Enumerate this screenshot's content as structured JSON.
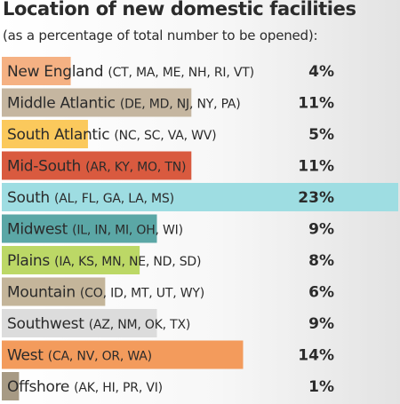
{
  "chart_data": {
    "type": "bar",
    "orientation": "horizontal",
    "title": "Location of new domestic facilities",
    "subtitle": "(as a percentage of total number to be opened):",
    "unit": "%",
    "categories": [
      {
        "region": "New England",
        "states": "(CT, MA, ME, NH, RI, VT)"
      },
      {
        "region": "Middle Atlantic",
        "states": "(DE, MD, NJ, NY, PA)"
      },
      {
        "region": "South Atlantic",
        "states": "(NC, SC, VA, WV)"
      },
      {
        "region": "Mid-South",
        "states": "(AR, KY, MO, TN)"
      },
      {
        "region": "South",
        "states": "(AL, FL, GA, LA, MS)"
      },
      {
        "region": "Midwest",
        "states": "(IL, IN, MI, OH, WI)"
      },
      {
        "region": "Plains",
        "states": "(IA, KS, MN, NE, ND, SD)"
      },
      {
        "region": "Mountain",
        "states": "(CO, ID, MT, UT, WY)"
      },
      {
        "region": "Southwest",
        "states": "(AZ, NM, OK, TX)"
      },
      {
        "region": "West",
        "states": "(CA, NV, OR, WA)"
      },
      {
        "region": "Offshore",
        "states": "(AK, HI, PR, VI)"
      }
    ],
    "values": [
      4,
      11,
      5,
      11,
      23,
      9,
      8,
      6,
      9,
      14,
      1
    ],
    "value_labels": [
      "4%",
      "11%",
      "5%",
      "11%",
      "23%",
      "9%",
      "8%",
      "6%",
      "9%",
      "14%",
      "1%"
    ],
    "colors": [
      "#f5b183",
      "#c5b6a0",
      "#fbc95c",
      "#d95a3f",
      "#9edde2",
      "#5ba7a6",
      "#bcd866",
      "#c4b59a",
      "#dcdcdc",
      "#f39b5c",
      "#a79a84"
    ],
    "xlim": [
      0,
      23
    ],
    "grid": false,
    "legend": "none"
  }
}
